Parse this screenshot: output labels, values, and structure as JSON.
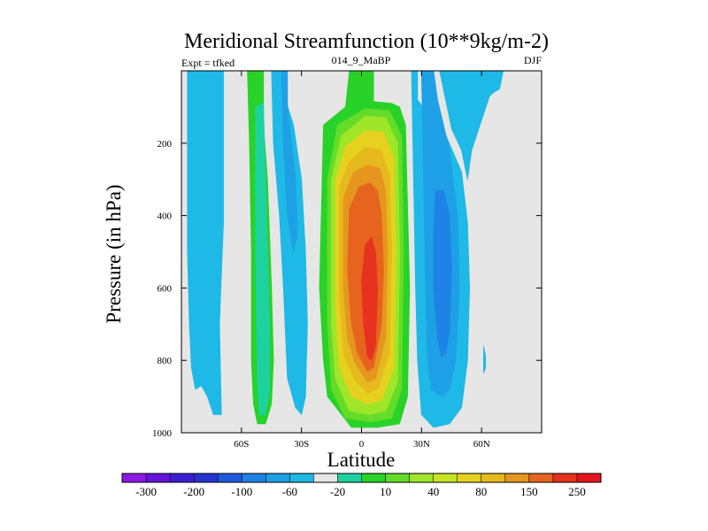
{
  "chart_data": {
    "type": "contour",
    "title": "Meridional Streamfunction (10**9kg/m-2)",
    "left_string": "Expt = tfked",
    "center_string": "014_9_MaBP",
    "right_string": "DJF",
    "xlabel": "Latitude",
    "ylabel": "Pressure (in hPa)",
    "xlim": [
      -90,
      90
    ],
    "ylim": [
      1000,
      0
    ],
    "x_ticks": [
      {
        "value": -60,
        "label": "60S"
      },
      {
        "value": -30,
        "label": "30S"
      },
      {
        "value": 0,
        "label": "0"
      },
      {
        "value": 30,
        "label": "30N"
      },
      {
        "value": 60,
        "label": "60N"
      }
    ],
    "y_ticks": [
      {
        "value": 200,
        "label": "200"
      },
      {
        "value": 400,
        "label": "400"
      },
      {
        "value": 600,
        "label": "600"
      },
      {
        "value": 800,
        "label": "800"
      },
      {
        "value": 1000,
        "label": "1000"
      }
    ],
    "background_color": "#e6e6e6",
    "colorbar": {
      "colors": [
        "#8c19e6",
        "#6414dc",
        "#3c1ed2",
        "#2832d2",
        "#1e5adc",
        "#1e82e6",
        "#1ea0e6",
        "#1eb9e6",
        "#e6e6e6",
        "#1ed2a0",
        "#28d228",
        "#64dc28",
        "#a0e628",
        "#c8e61e",
        "#e6d21e",
        "#e6b91e",
        "#e6961e",
        "#e6641e",
        "#e6321e",
        "#e6141e"
      ],
      "label_values": [
        "-300",
        "-200",
        "-100",
        "-60",
        "-20",
        "10",
        "40",
        "80",
        "150",
        "250"
      ]
    },
    "regions": [
      {
        "name": "sh-blue-band-outer",
        "value": -10,
        "color": "#1eb9e6",
        "poly": [
          [
            -87,
            0
          ],
          [
            -69,
            0
          ],
          [
            -69,
            420
          ],
          [
            -71,
            700
          ],
          [
            -70,
            950
          ],
          [
            -74,
            950
          ],
          [
            -77,
            900
          ],
          [
            -80,
            870
          ],
          [
            -83,
            880
          ],
          [
            -85,
            820
          ],
          [
            -86,
            700
          ],
          [
            -87,
            500
          ]
        ]
      },
      {
        "name": "sh-green-band",
        "value": 10,
        "color": "#28d228",
        "poly": [
          [
            -57,
            0
          ],
          [
            -49,
            0
          ],
          [
            -49,
            150
          ],
          [
            -47,
            300
          ],
          [
            -45,
            600
          ],
          [
            -44,
            800
          ],
          [
            -45,
            920
          ],
          [
            -48,
            975
          ],
          [
            -52,
            975
          ],
          [
            -54,
            920
          ],
          [
            -55,
            800
          ],
          [
            -55,
            500
          ],
          [
            -56,
            200
          ]
        ]
      },
      {
        "name": "sh-teal-band",
        "value": 5,
        "color": "#1ed2a0",
        "poly": [
          [
            -53,
            100
          ],
          [
            -49,
            90
          ],
          [
            -48,
            300
          ],
          [
            -46,
            700
          ],
          [
            -46,
            880
          ],
          [
            -48,
            950
          ],
          [
            -51,
            950
          ],
          [
            -52,
            850
          ],
          [
            -53,
            500
          ]
        ]
      },
      {
        "name": "sh-blue-band-mid",
        "value": -15,
        "color": "#1eb9e6",
        "poly": [
          [
            -45,
            0
          ],
          [
            -38,
            0
          ],
          [
            -38,
            80
          ],
          [
            -34,
            150
          ],
          [
            -30,
            300
          ],
          [
            -28,
            500
          ],
          [
            -27,
            700
          ],
          [
            -28,
            900
          ],
          [
            -30,
            950
          ],
          [
            -33,
            930
          ],
          [
            -37,
            850
          ],
          [
            -39,
            600
          ],
          [
            -41,
            400
          ],
          [
            -44,
            200
          ]
        ]
      },
      {
        "name": "sh-blue-core",
        "value": -25,
        "color": "#1ea0e6",
        "poly": [
          [
            -40,
            0
          ],
          [
            -37,
            0
          ],
          [
            -37,
            100
          ],
          [
            -35,
            200
          ],
          [
            -33,
            300
          ],
          [
            -32,
            450
          ],
          [
            -34,
            500
          ],
          [
            -37,
            400
          ],
          [
            -39,
            200
          ]
        ]
      },
      {
        "name": "ht-green-outer",
        "value": 20,
        "color": "#28d228",
        "poly": [
          [
            -17,
            900
          ],
          [
            -19,
            800
          ],
          [
            -21,
            600
          ],
          [
            -19,
            150
          ],
          [
            -8,
            100
          ],
          [
            -6,
            0
          ],
          [
            6,
            0
          ],
          [
            6,
            85
          ],
          [
            15,
            90
          ],
          [
            19,
            100
          ],
          [
            22,
            150
          ],
          [
            24,
            600
          ],
          [
            23,
            900
          ],
          [
            19,
            975
          ],
          [
            8,
            985
          ],
          [
            -5,
            985
          ]
        ]
      },
      {
        "name": "ht-lime",
        "value": 40,
        "color": "#64dc28",
        "poly": [
          [
            -15,
            880
          ],
          [
            -17,
            700
          ],
          [
            -17,
            300
          ],
          [
            -12,
            150
          ],
          [
            2,
            105
          ],
          [
            14,
            110
          ],
          [
            20,
            180
          ],
          [
            21,
            500
          ],
          [
            20,
            880
          ],
          [
            15,
            960
          ],
          [
            5,
            970
          ],
          [
            -8,
            960
          ]
        ]
      },
      {
        "name": "ht-yellowgreen",
        "value": 60,
        "color": "#a0e628",
        "poly": [
          [
            -13,
            850
          ],
          [
            -15,
            700
          ],
          [
            -15,
            300
          ],
          [
            -10,
            180
          ],
          [
            2,
            125
          ],
          [
            12,
            130
          ],
          [
            18,
            200
          ],
          [
            19,
            500
          ],
          [
            18,
            860
          ],
          [
            12,
            940
          ],
          [
            4,
            950
          ],
          [
            -6,
            940
          ]
        ]
      },
      {
        "name": "ht-yellow",
        "value": 80,
        "color": "#e6d21e",
        "poly": [
          [
            -11,
            820
          ],
          [
            -13,
            650
          ],
          [
            -13,
            300
          ],
          [
            -8,
            210
          ],
          [
            2,
            165
          ],
          [
            11,
            170
          ],
          [
            16,
            240
          ],
          [
            17,
            500
          ],
          [
            16,
            820
          ],
          [
            10,
            910
          ],
          [
            3,
            920
          ],
          [
            -5,
            900
          ]
        ]
      },
      {
        "name": "ht-lightorange",
        "value": 100,
        "color": "#e6b91e",
        "poly": [
          [
            -9,
            780
          ],
          [
            -11,
            620
          ],
          [
            -11,
            320
          ],
          [
            -6,
            250
          ],
          [
            2,
            210
          ],
          [
            10,
            220
          ],
          [
            14,
            290
          ],
          [
            15,
            500
          ],
          [
            14,
            780
          ],
          [
            8,
            880
          ],
          [
            3,
            890
          ],
          [
            -4,
            850
          ]
        ]
      },
      {
        "name": "ht-orange",
        "value": 150,
        "color": "#e6961e",
        "poly": [
          [
            -7,
            740
          ],
          [
            -9,
            600
          ],
          [
            -9,
            350
          ],
          [
            -4,
            280
          ],
          [
            3,
            260
          ],
          [
            9,
            270
          ],
          [
            12,
            330
          ],
          [
            13,
            500
          ],
          [
            12,
            740
          ],
          [
            7,
            850
          ],
          [
            3,
            860
          ],
          [
            -3,
            810
          ]
        ]
      },
      {
        "name": "ht-darkorange",
        "value": 200,
        "color": "#e6641e",
        "poly": [
          [
            -5,
            700
          ],
          [
            -7,
            550
          ],
          [
            -6,
            380
          ],
          [
            -1,
            320
          ],
          [
            4,
            310
          ],
          [
            8,
            330
          ],
          [
            10,
            400
          ],
          [
            11,
            550
          ],
          [
            10,
            700
          ],
          [
            6,
            820
          ],
          [
            3,
            830
          ],
          [
            -2,
            780
          ]
        ]
      },
      {
        "name": "ht-red",
        "value": 250,
        "color": "#e6321e",
        "poly": [
          [
            0,
            580
          ],
          [
            2,
            480
          ],
          [
            5,
            460
          ],
          [
            7,
            500
          ],
          [
            8,
            600
          ],
          [
            7,
            760
          ],
          [
            5,
            800
          ],
          [
            3,
            790
          ],
          [
            1,
            700
          ]
        ]
      },
      {
        "name": "nh-blue-band-outer",
        "value": -15,
        "color": "#1eb9e6",
        "poly": [
          [
            25,
            0
          ],
          [
            28,
            0
          ],
          [
            28,
            80
          ],
          [
            32,
            110
          ],
          [
            40,
            150
          ],
          [
            50,
            280
          ],
          [
            53,
            420
          ],
          [
            54,
            600
          ],
          [
            53,
            800
          ],
          [
            50,
            930
          ],
          [
            44,
            975
          ],
          [
            36,
            985
          ],
          [
            30,
            950
          ],
          [
            28,
            800
          ],
          [
            27,
            600
          ],
          [
            26,
            300
          ]
        ]
      },
      {
        "name": "nh-blue-band-mid",
        "value": -30,
        "color": "#1ea0e6",
        "poly": [
          [
            30,
            0
          ],
          [
            36,
            0
          ],
          [
            38,
            80
          ],
          [
            44,
            220
          ],
          [
            48,
            400
          ],
          [
            49,
            600
          ],
          [
            47,
            800
          ],
          [
            44,
            880
          ],
          [
            40,
            900
          ],
          [
            35,
            880
          ],
          [
            33,
            800
          ],
          [
            32,
            600
          ],
          [
            31,
            300
          ]
        ]
      },
      {
        "name": "nh-blue-core",
        "value": -60,
        "color": "#1e82e6",
        "poly": [
          [
            37,
            330
          ],
          [
            41,
            330
          ],
          [
            44,
            400
          ],
          [
            45,
            550
          ],
          [
            44,
            720
          ],
          [
            42,
            780
          ],
          [
            40,
            790
          ],
          [
            38,
            740
          ],
          [
            36,
            600
          ],
          [
            36,
            450
          ]
        ]
      },
      {
        "name": "nh-blue-upper",
        "value": -10,
        "color": "#1eb9e6",
        "poly": [
          [
            39,
            0
          ],
          [
            45,
            0
          ],
          [
            47,
            -8
          ],
          [
            50,
            0
          ],
          [
            53,
            0
          ],
          [
            56,
            -8
          ],
          [
            60,
            0
          ],
          [
            61,
            0
          ],
          [
            65,
            -2
          ],
          [
            71,
            -5
          ],
          [
            69,
            50
          ],
          [
            66,
            60
          ],
          [
            64,
            70
          ],
          [
            61,
            120
          ],
          [
            55,
            220
          ],
          [
            53,
            300
          ],
          [
            50,
            220
          ],
          [
            45,
            160
          ]
        ]
      },
      {
        "name": "nh-blue-sliver",
        "value": -10,
        "color": "#1eb9e6",
        "poly": [
          [
            61,
            760
          ],
          [
            62,
            790
          ],
          [
            62,
            820
          ],
          [
            61,
            835
          ],
          [
            61,
            800
          ]
        ]
      }
    ]
  }
}
